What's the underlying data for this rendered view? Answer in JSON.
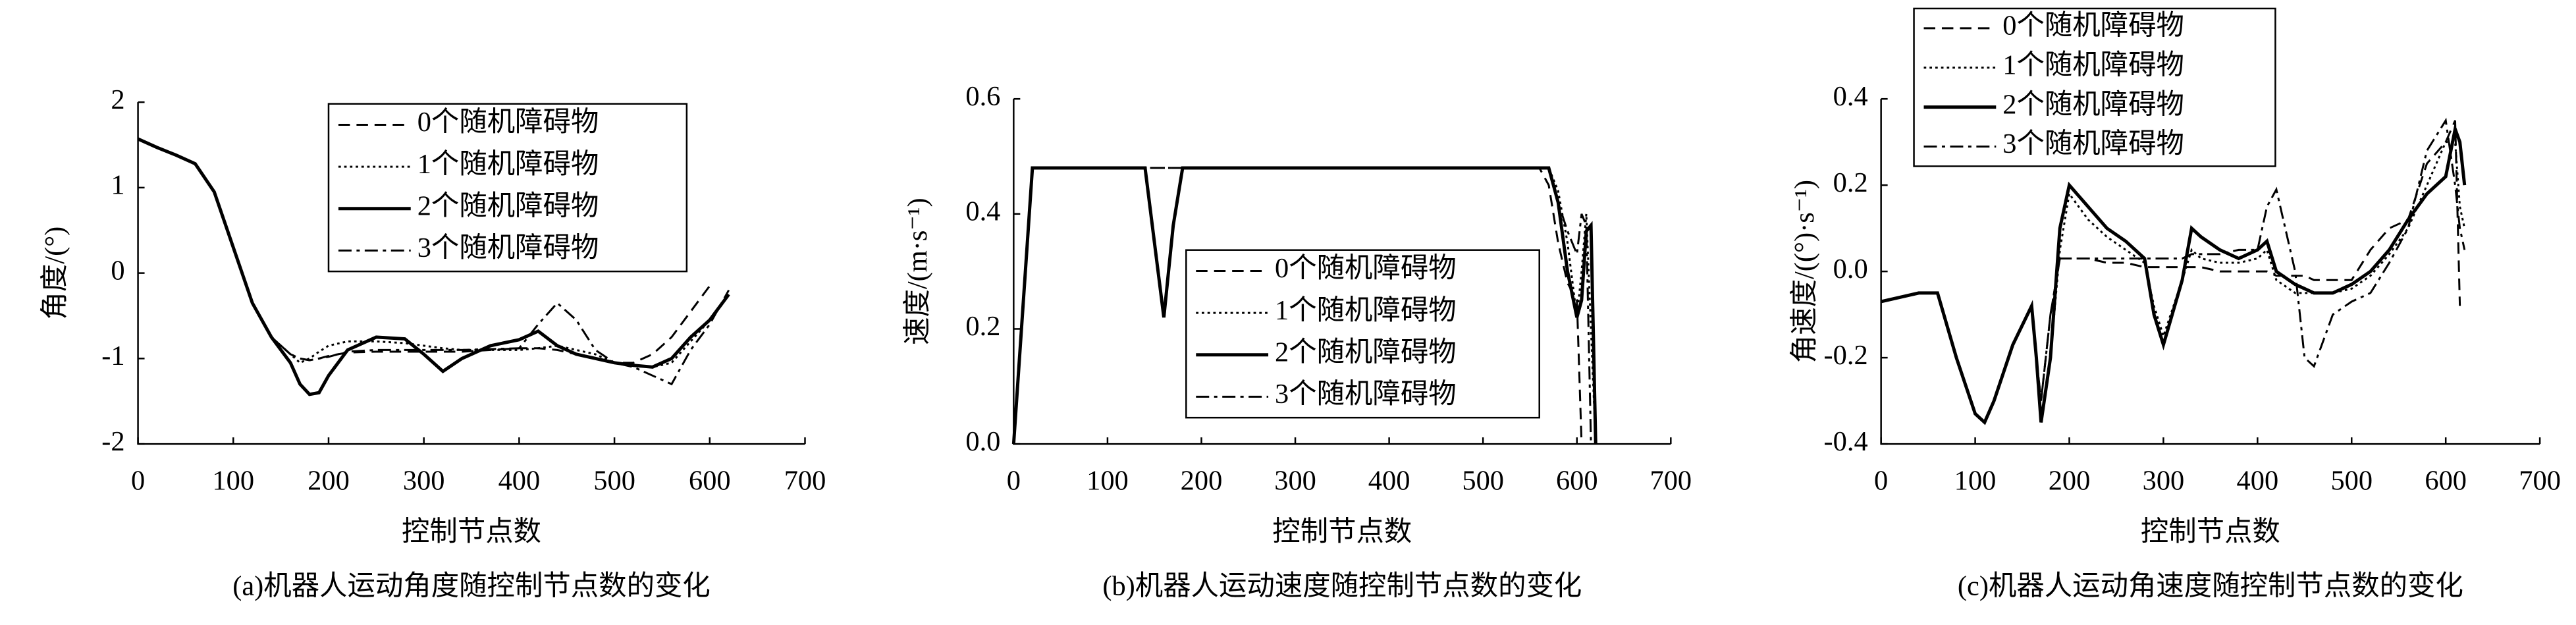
{
  "chart_data": [
    {
      "type": "line",
      "caption": "(a)机器人运动角度随控制节点数的变化",
      "x_label": "控制节点数",
      "y_label": "角度/(°)",
      "x": [
        0,
        20,
        40,
        60,
        80,
        100,
        120,
        140,
        160,
        170,
        180,
        190,
        200,
        220,
        250,
        280,
        300,
        320,
        340,
        370,
        400,
        420,
        440,
        460,
        480,
        500,
        520,
        540,
        560,
        580,
        600,
        620
      ],
      "xlim": [
        0,
        700
      ],
      "xticks": [
        0,
        100,
        200,
        300,
        400,
        500,
        600,
        700
      ],
      "ylim": [
        -2,
        2
      ],
      "yticks": [
        -2,
        -1,
        0,
        1,
        2
      ],
      "series": [
        {
          "name": "0个随机障碍物",
          "color": "#000000",
          "line_style": "dashed",
          "values": [
            1.57,
            1.47,
            1.38,
            1.28,
            0.95,
            0.3,
            -0.35,
            -0.75,
            -0.95,
            -1.0,
            -1.02,
            -1.0,
            -0.97,
            -0.93,
            -0.92,
            -0.92,
            -0.92,
            -0.92,
            -0.92,
            -0.9,
            -0.88,
            -0.88,
            -0.9,
            -0.95,
            -1.0,
            -1.05,
            -1.05,
            -0.95,
            -0.75,
            -0.45,
            -0.15,
            null
          ]
        },
        {
          "name": "1个随机障碍物",
          "color": "#000000",
          "line_style": "dotted",
          "values": [
            1.57,
            1.47,
            1.38,
            1.28,
            0.95,
            0.3,
            -0.35,
            -0.75,
            -0.95,
            -1.05,
            -1.0,
            -0.92,
            -0.85,
            -0.8,
            -0.8,
            -0.82,
            -0.85,
            -0.88,
            -0.9,
            -0.9,
            -0.9,
            -0.88,
            -0.85,
            -0.9,
            -0.95,
            -1.05,
            -1.08,
            -1.1,
            -1.05,
            -0.8,
            -0.55,
            -0.25
          ]
        },
        {
          "name": "2个随机障碍物",
          "color": "#000000",
          "line_style": "solid",
          "values": [
            1.57,
            1.47,
            1.38,
            1.28,
            0.95,
            0.3,
            -0.35,
            -0.75,
            -1.05,
            -1.3,
            -1.42,
            -1.4,
            -1.2,
            -0.9,
            -0.75,
            -0.77,
            -0.95,
            -1.15,
            -1.0,
            -0.85,
            -0.78,
            -0.68,
            -0.85,
            -0.95,
            -1.0,
            -1.05,
            -1.08,
            -1.1,
            -1.0,
            -0.75,
            -0.55,
            -0.25
          ]
        },
        {
          "name": "3个随机障碍物",
          "color": "#000000",
          "line_style": "dashdot",
          "values": [
            1.57,
            1.47,
            1.38,
            1.28,
            0.95,
            0.3,
            -0.35,
            -0.75,
            -0.95,
            -1.0,
            -1.02,
            -1.0,
            -0.98,
            -0.92,
            -0.9,
            -0.9,
            -0.9,
            -0.9,
            -0.9,
            -0.89,
            -0.88,
            -0.6,
            -0.35,
            -0.55,
            -0.9,
            -1.05,
            -1.1,
            -1.2,
            -1.3,
            -0.9,
            -0.6,
            -0.2
          ]
        }
      ]
    },
    {
      "type": "line",
      "caption": "(b)机器人运动速度随控制节点数的变化",
      "x_label": "控制节点数",
      "y_label": "速度/(m·s⁻¹)",
      "x": [
        0,
        20,
        140,
        150,
        160,
        170,
        180,
        560,
        570,
        580,
        590,
        600,
        605,
        610,
        615,
        620
      ],
      "xlim": [
        0,
        700
      ],
      "xticks": [
        0,
        100,
        200,
        300,
        400,
        500,
        600,
        700
      ],
      "ylim": [
        0,
        0.6
      ],
      "yticks": [
        {
          "value": 0,
          "label": "0.0"
        },
        0.2,
        0.4,
        0.6
      ],
      "series": [
        {
          "name": "0个随机障碍物",
          "color": "#000000",
          "line_style": "dashed",
          "values": [
            0,
            0.48,
            0.48,
            0.48,
            0.48,
            0.48,
            0.48,
            0.48,
            0.45,
            0.35,
            0.28,
            0.25,
            0,
            null,
            null,
            null
          ]
        },
        {
          "name": "1个随机障碍物",
          "color": "#000000",
          "line_style": "dotted",
          "values": [
            0,
            0.48,
            0.48,
            0.35,
            0.22,
            0.38,
            0.48,
            0.48,
            0.48,
            0.44,
            0.35,
            0.22,
            0.3,
            0.4,
            0.2,
            0
          ]
        },
        {
          "name": "2个随机障碍物",
          "color": "#000000",
          "line_style": "solid",
          "values": [
            0,
            0.48,
            0.48,
            0.35,
            0.22,
            0.38,
            0.48,
            0.48,
            0.48,
            0.42,
            0.3,
            0.22,
            0.25,
            0.37,
            0.38,
            0
          ]
        },
        {
          "name": "3个随机障碍物",
          "color": "#000000",
          "line_style": "dashdot",
          "values": [
            0,
            0.48,
            0.48,
            0.48,
            0.48,
            0.48,
            0.48,
            0.48,
            0.48,
            0.42,
            0.37,
            0.33,
            0.4,
            0.38,
            0,
            null
          ]
        }
      ]
    },
    {
      "type": "line",
      "caption": "(c)机器人运动角速度随控制节点数的变化",
      "x_label": "控制节点数",
      "y_label": "角速度/((°)·s⁻¹)",
      "x": [
        0,
        20,
        40,
        60,
        80,
        100,
        110,
        120,
        140,
        160,
        165,
        170,
        180,
        190,
        200,
        220,
        240,
        260,
        280,
        290,
        300,
        320,
        330,
        340,
        360,
        380,
        400,
        410,
        420,
        440,
        450,
        460,
        480,
        500,
        520,
        540,
        560,
        580,
        600,
        610,
        615,
        620
      ],
      "xlim": [
        0,
        700
      ],
      "xticks": [
        0,
        100,
        200,
        300,
        400,
        500,
        600,
        700
      ],
      "ylim": [
        -0.4,
        0.4
      ],
      "yticks": [
        -0.4,
        -0.2,
        {
          "value": 0,
          "label": "0.0"
        },
        0.2,
        0.4
      ],
      "series": [
        {
          "name": "0个随机障碍物",
          "color": "#000000",
          "line_style": "dashed",
          "values": [
            -0.07,
            -0.06,
            -0.05,
            -0.05,
            -0.2,
            -0.33,
            -0.35,
            -0.3,
            -0.17,
            -0.08,
            -0.2,
            -0.3,
            -0.1,
            0.03,
            0.03,
            0.03,
            0.02,
            0.02,
            0.01,
            0.01,
            0.01,
            0.01,
            0.01,
            0.01,
            0.0,
            0.0,
            0.0,
            0.0,
            -0.01,
            -0.01,
            -0.01,
            -0.02,
            -0.02,
            -0.02,
            0.05,
            0.1,
            0.12,
            0.25,
            0.3,
            0.35,
            -0.08,
            null
          ]
        },
        {
          "name": "1个随机障碍物",
          "color": "#000000",
          "line_style": "dotted",
          "values": [
            -0.07,
            -0.06,
            -0.05,
            -0.05,
            -0.2,
            -0.33,
            -0.35,
            -0.3,
            -0.17,
            -0.08,
            -0.2,
            -0.35,
            -0.2,
            0.05,
            0.18,
            0.12,
            0.08,
            0.05,
            0.02,
            -0.08,
            -0.15,
            -0.02,
            0.05,
            0.03,
            0.02,
            0.02,
            0.03,
            0.05,
            -0.02,
            -0.05,
            -0.05,
            -0.05,
            -0.05,
            -0.04,
            -0.01,
            0.04,
            0.1,
            0.2,
            0.3,
            0.3,
            0.15,
            0.1
          ]
        },
        {
          "name": "2个随机障碍物",
          "color": "#000000",
          "line_style": "solid",
          "values": [
            -0.07,
            -0.06,
            -0.05,
            -0.05,
            -0.2,
            -0.33,
            -0.35,
            -0.3,
            -0.17,
            -0.08,
            -0.2,
            -0.35,
            -0.2,
            0.1,
            0.2,
            0.15,
            0.1,
            0.07,
            0.03,
            -0.1,
            -0.17,
            -0.02,
            0.1,
            0.08,
            0.05,
            0.03,
            0.05,
            0.07,
            0.0,
            -0.03,
            -0.04,
            -0.05,
            -0.05,
            -0.03,
            0.0,
            0.05,
            0.12,
            0.18,
            0.22,
            0.33,
            0.3,
            0.2
          ]
        },
        {
          "name": "3个随机障碍物",
          "color": "#000000",
          "line_style": "dashdot",
          "values": [
            -0.07,
            -0.06,
            -0.05,
            -0.05,
            -0.2,
            -0.33,
            -0.35,
            -0.3,
            -0.17,
            -0.08,
            -0.2,
            -0.3,
            -0.1,
            0.03,
            0.03,
            0.03,
            0.03,
            0.03,
            0.03,
            0.03,
            0.03,
            0.03,
            0.04,
            0.04,
            0.04,
            0.05,
            0.05,
            0.15,
            0.19,
            0.0,
            -0.2,
            -0.22,
            -0.1,
            -0.07,
            -0.05,
            0.02,
            0.1,
            0.28,
            0.35,
            0.2,
            0.1,
            0.05
          ]
        }
      ]
    }
  ]
}
